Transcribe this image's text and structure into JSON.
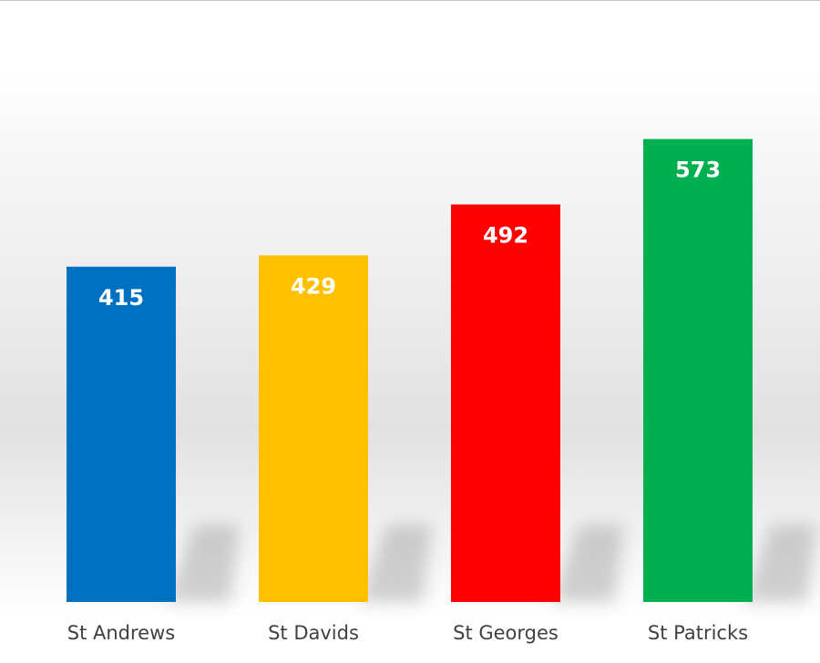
{
  "chart_data": {
    "type": "bar",
    "categories": [
      "St Andrews",
      "St Davids",
      "St Georges",
      "St Patricks"
    ],
    "values": [
      415,
      429,
      492,
      573
    ],
    "colors": [
      "#0070c0",
      "#ffc000",
      "#ff0000",
      "#00b050"
    ],
    "data_labels": [
      "415",
      "429",
      "492",
      "573"
    ],
    "ylim": [
      0,
      700
    ],
    "grid": false,
    "legend": "none"
  }
}
